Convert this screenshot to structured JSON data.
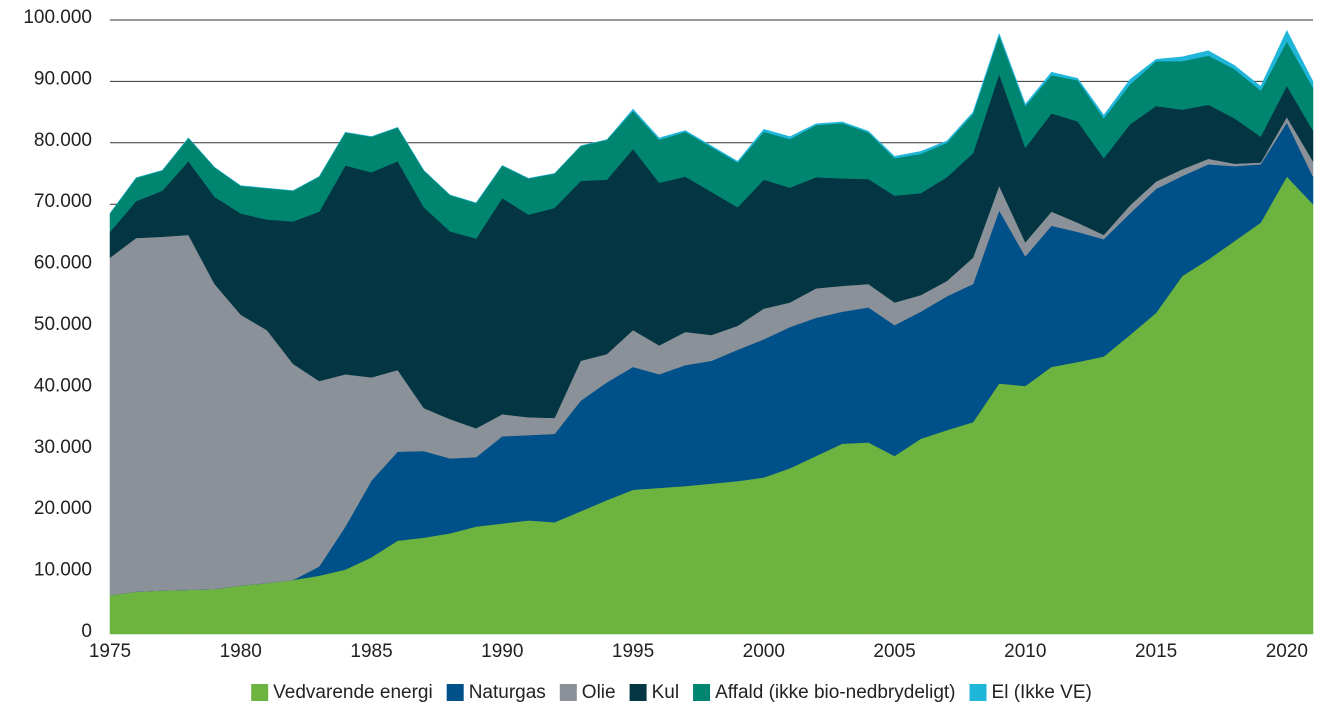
{
  "chart_data": {
    "type": "stacked_area",
    "x": [
      1975,
      1976,
      1977,
      1978,
      1979,
      1980,
      1981,
      1982,
      1983,
      1984,
      1985,
      1986,
      1987,
      1988,
      1989,
      1990,
      1991,
      1992,
      1993,
      1994,
      1995,
      1996,
      1997,
      1998,
      1999,
      2000,
      2001,
      2002,
      2003,
      2004,
      2005,
      2006,
      2007,
      2008,
      2009,
      2010,
      2011,
      2012,
      2013,
      2014,
      2015,
      2016,
      2017,
      2018,
      2019,
      2020,
      2021
    ],
    "series": [
      {
        "name": "Vedvarende energi",
        "color": "#6db33f",
        "values": [
          6300,
          6900,
          7100,
          7200,
          7300,
          7900,
          8300,
          8800,
          9500,
          10500,
          12500,
          15200,
          15700,
          16400,
          17500,
          18000,
          18500,
          18200,
          20000,
          21800,
          23500,
          23800,
          24100,
          24500,
          24900,
          25500,
          27000,
          29000,
          31000,
          31200,
          29000,
          31800,
          33200,
          34500,
          40800,
          40400,
          43500,
          44300,
          45200,
          48700,
          52300,
          58300,
          61000,
          64000,
          67000,
          74500,
          70000
        ]
      },
      {
        "name": "Naturgas",
        "color": "#00508a",
        "values": [
          0,
          0,
          0,
          0,
          0,
          0,
          0,
          0,
          1500,
          7000,
          12500,
          14500,
          14100,
          12200,
          11300,
          14200,
          13900,
          14400,
          18000,
          19200,
          20000,
          18500,
          19700,
          20000,
          21400,
          22500,
          23000,
          22500,
          21500,
          22000,
          21300,
          20700,
          21800,
          22500,
          28200,
          21100,
          23000,
          21200,
          19100,
          19800,
          20200,
          16300,
          15500,
          12200,
          9500,
          8800,
          4500
        ]
      },
      {
        "name": "Olie",
        "color": "#8a9198",
        "values": [
          55000,
          57600,
          57600,
          57800,
          49700,
          44100,
          41200,
          35200,
          30200,
          24800,
          16800,
          13300,
          7000,
          6400,
          4700,
          3600,
          2900,
          2600,
          6500,
          4600,
          6000,
          4700,
          5400,
          4200,
          3900,
          5000,
          4000,
          4800,
          4200,
          3800,
          3700,
          2700,
          2500,
          4300,
          4000,
          2300,
          2300,
          1500,
          700,
          1300,
          1200,
          1100,
          900,
          400,
          300,
          900,
          2500
        ]
      },
      {
        "name": "Kul",
        "color": "#033642",
        "values": [
          4200,
          6000,
          7500,
          12000,
          14200,
          16500,
          18000,
          23200,
          27600,
          34000,
          33400,
          34000,
          32700,
          30600,
          30900,
          35200,
          33000,
          34200,
          29300,
          28400,
          29500,
          26500,
          25300,
          23300,
          19300,
          21000,
          18700,
          18100,
          17500,
          17100,
          17400,
          16600,
          16900,
          17000,
          18200,
          15400,
          16000,
          16500,
          12500,
          13200,
          12300,
          9700,
          8800,
          7400,
          4200,
          5100,
          5000
        ]
      },
      {
        "name": "Affald (ikke bio-nedbrydeligt)",
        "color": "#008571",
        "values": [
          3000,
          3800,
          3300,
          3800,
          4800,
          4500,
          5100,
          5000,
          5700,
          5400,
          5800,
          5500,
          6000,
          5900,
          5800,
          5300,
          5900,
          5600,
          5700,
          6500,
          6200,
          7000,
          7300,
          7300,
          7300,
          7800,
          7900,
          8500,
          9000,
          7600,
          6100,
          6400,
          5600,
          6400,
          6300,
          6800,
          6200,
          6700,
          6500,
          6500,
          7300,
          7900,
          8000,
          8000,
          7500,
          7200,
          7000
        ]
      },
      {
        "name": "El (Ikke VE)",
        "color": "#1fb6d9",
        "values": [
          0,
          0,
          0,
          0,
          0,
          0,
          0,
          0,
          0,
          0,
          0,
          0,
          0,
          0,
          0,
          0,
          0,
          0,
          0,
          0,
          300,
          300,
          200,
          200,
          200,
          400,
          400,
          200,
          200,
          200,
          300,
          400,
          300,
          300,
          300,
          300,
          500,
          300,
          500,
          800,
          300,
          700,
          800,
          600,
          700,
          1800,
          1000
        ]
      }
    ],
    "xlim": [
      1975,
      2021
    ],
    "xticks": [
      1975,
      1980,
      1985,
      1990,
      1995,
      2000,
      2005,
      2010,
      2015,
      2020
    ],
    "ylim": [
      0,
      100000
    ],
    "yticks": [
      0,
      {
        "value": 10000,
        "label": "10.000"
      },
      {
        "value": 20000,
        "label": "20.000"
      },
      {
        "value": 30000,
        "label": "30.000"
      },
      {
        "value": 40000,
        "label": "40.000"
      },
      {
        "value": 50000,
        "label": "50.000"
      },
      {
        "value": 60000,
        "label": "60.000"
      },
      {
        "value": 70000,
        "label": "70.000"
      },
      {
        "value": 80000,
        "label": "80.000"
      },
      {
        "value": 90000,
        "label": "90.000"
      },
      {
        "value": 100000,
        "label": "100.000"
      }
    ],
    "grid": true,
    "legend": "bottom"
  }
}
